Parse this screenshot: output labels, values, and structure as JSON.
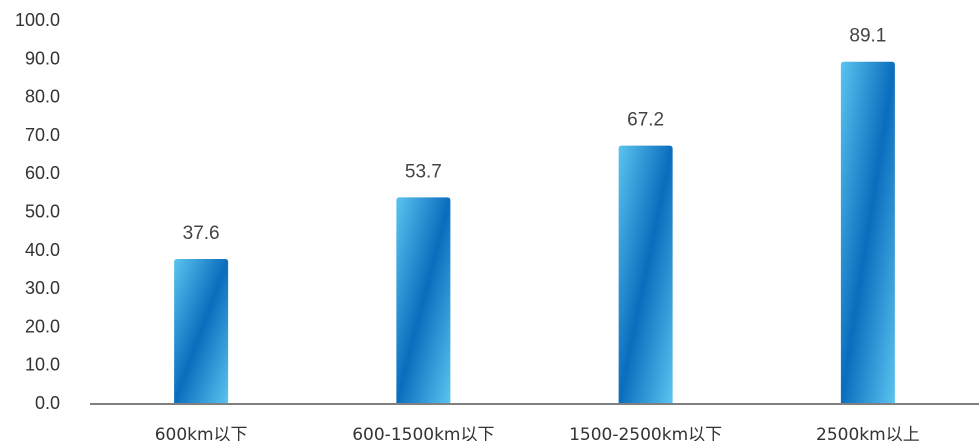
{
  "chart_data": {
    "type": "bar",
    "title": "",
    "xlabel": "",
    "ylabel": "",
    "categories": [
      "600km以下",
      "600-1500km以下",
      "1500-2500km以下",
      "2500km以上"
    ],
    "values": [
      37.6,
      53.7,
      67.2,
      89.1
    ],
    "data_labels": [
      "37.6",
      "53.7",
      "67.2",
      "89.1"
    ],
    "ylim": [
      0,
      100
    ],
    "yticks": [
      "0.0",
      "10.0",
      "20.0",
      "30.0",
      "40.0",
      "50.0",
      "60.0",
      "70.0",
      "80.0",
      "90.0",
      "100.0"
    ],
    "grid": false,
    "legend": "none",
    "colors": {
      "bar_light": "#5bc4f0",
      "bar_dark": "#0a6dbd",
      "axis": "#7f7f7f"
    }
  }
}
